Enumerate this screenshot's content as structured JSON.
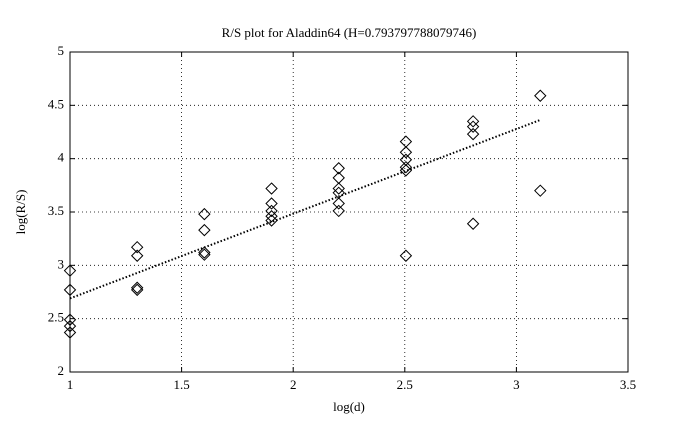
{
  "chart_data": {
    "type": "scatter",
    "title": "R/S plot for Aladdin64 (H=0.793797788079746)",
    "xlabel": "log(d)",
    "ylabel": "log(R/S)",
    "x": [
      1,
      1,
      1,
      1,
      1,
      1.301,
      1.301,
      1.301,
      1.301,
      1.602,
      1.602,
      1.602,
      1.602,
      1.903,
      1.903,
      1.903,
      1.903,
      1.903,
      2.204,
      2.204,
      2.204,
      2.204,
      2.204,
      2.204,
      2.505,
      2.505,
      2.505,
      2.505,
      2.505,
      2.505,
      2.806,
      2.806,
      2.806,
      2.806,
      3.107,
      3.107
    ],
    "values": [
      2.95,
      2.77,
      2.49,
      2.43,
      2.37,
      3.17,
      3.09,
      2.79,
      2.77,
      3.48,
      3.33,
      3.12,
      3.1,
      3.72,
      3.58,
      3.51,
      3.46,
      3.42,
      3.91,
      3.82,
      3.72,
      3.68,
      3.58,
      3.51,
      4.16,
      4.06,
      3.99,
      3.92,
      3.89,
      3.09,
      4.35,
      4.3,
      4.23,
      3.39,
      4.59,
      3.7
    ],
    "color": "#000000",
    "fit": {
      "x": [
        1,
        3.107
      ],
      "values": [
        2.69,
        4.363
      ],
      "color": "#000000"
    },
    "xlim": [
      1,
      3.5
    ],
    "ylim": [
      2,
      5
    ],
    "xticks": [
      1,
      1.5,
      2,
      2.5,
      3,
      3.5
    ],
    "yticks": [
      2,
      2.5,
      3,
      3.5,
      4,
      4.5,
      5
    ],
    "grid": true
  }
}
